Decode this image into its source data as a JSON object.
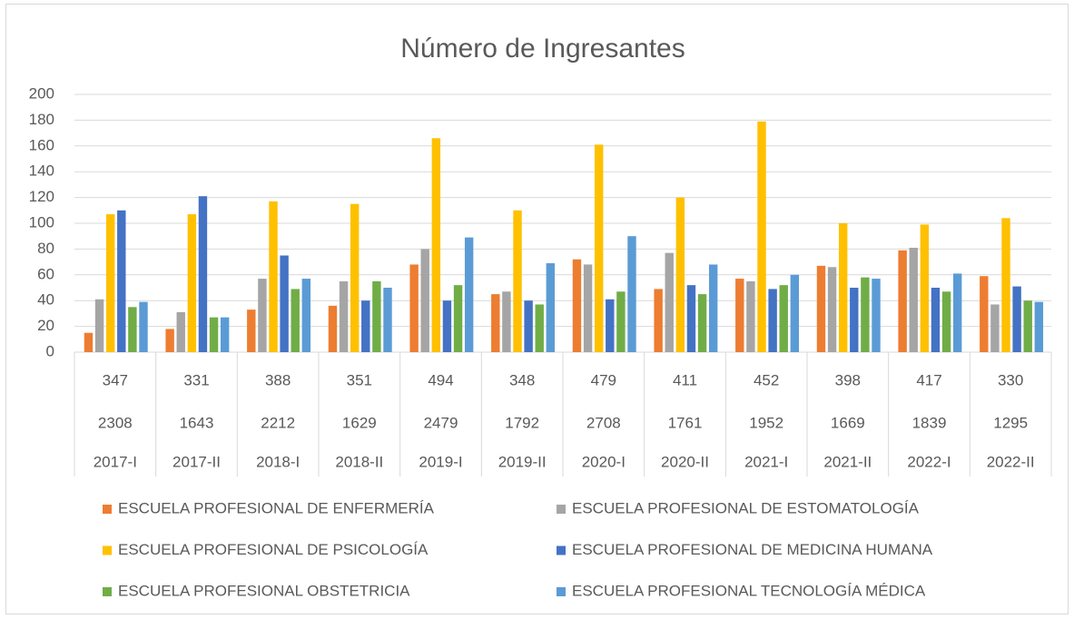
{
  "chart_data": {
    "type": "bar",
    "title": "Número de Ingresantes",
    "categories": [
      "2017-I",
      "2017-II",
      "2018-I",
      "2018-II",
      "2019-I",
      "2019-II",
      "2020-I",
      "2020-II",
      "2021-I",
      "2021-II",
      "2022-I",
      "2022-II"
    ],
    "category_rows": [
      [
        347,
        331,
        388,
        351,
        494,
        348,
        479,
        411,
        452,
        398,
        417,
        330
      ],
      [
        2308,
        1643,
        2212,
        1629,
        2479,
        1792,
        2708,
        1761,
        1952,
        1669,
        1839,
        1295
      ]
    ],
    "series": [
      {
        "name": "ESCUELA PROFESIONAL DE ENFERMERÍA",
        "color": "#ed7d31",
        "values": [
          15,
          18,
          33,
          36,
          68,
          45,
          72,
          49,
          57,
          67,
          79,
          59
        ]
      },
      {
        "name": "ESCUELA PROFESIONAL DE ESTOMATOLOGÍA",
        "color": "#a5a5a5",
        "values": [
          41,
          31,
          57,
          55,
          80,
          47,
          68,
          77,
          55,
          66,
          81,
          37
        ]
      },
      {
        "name": "ESCUELA PROFESIONAL DE PSICOLOGÍA",
        "color": "#ffc000",
        "values": [
          107,
          107,
          117,
          115,
          166,
          110,
          161,
          120,
          179,
          100,
          99,
          104
        ]
      },
      {
        "name": "ESCUELA PROFESIONAL DE MEDICINA HUMANA",
        "color": "#4472c4",
        "values": [
          110,
          121,
          75,
          40,
          40,
          40,
          41,
          52,
          49,
          50,
          50,
          51
        ]
      },
      {
        "name": "ESCUELA PROFESIONAL OBSTETRICIA",
        "color": "#70ad47",
        "values": [
          35,
          27,
          49,
          55,
          52,
          37,
          47,
          45,
          52,
          58,
          47,
          40
        ]
      },
      {
        "name": "ESCUELA PROFESIONAL TECNOLOGÍA MÉDICA",
        "color": "#5b9bd5",
        "values": [
          39,
          27,
          57,
          50,
          89,
          69,
          90,
          68,
          60,
          57,
          61,
          39
        ]
      }
    ],
    "ylim": [
      0,
      200
    ],
    "yticks": [
      0,
      20,
      40,
      60,
      80,
      100,
      120,
      140,
      160,
      180,
      200
    ],
    "grid": true
  }
}
